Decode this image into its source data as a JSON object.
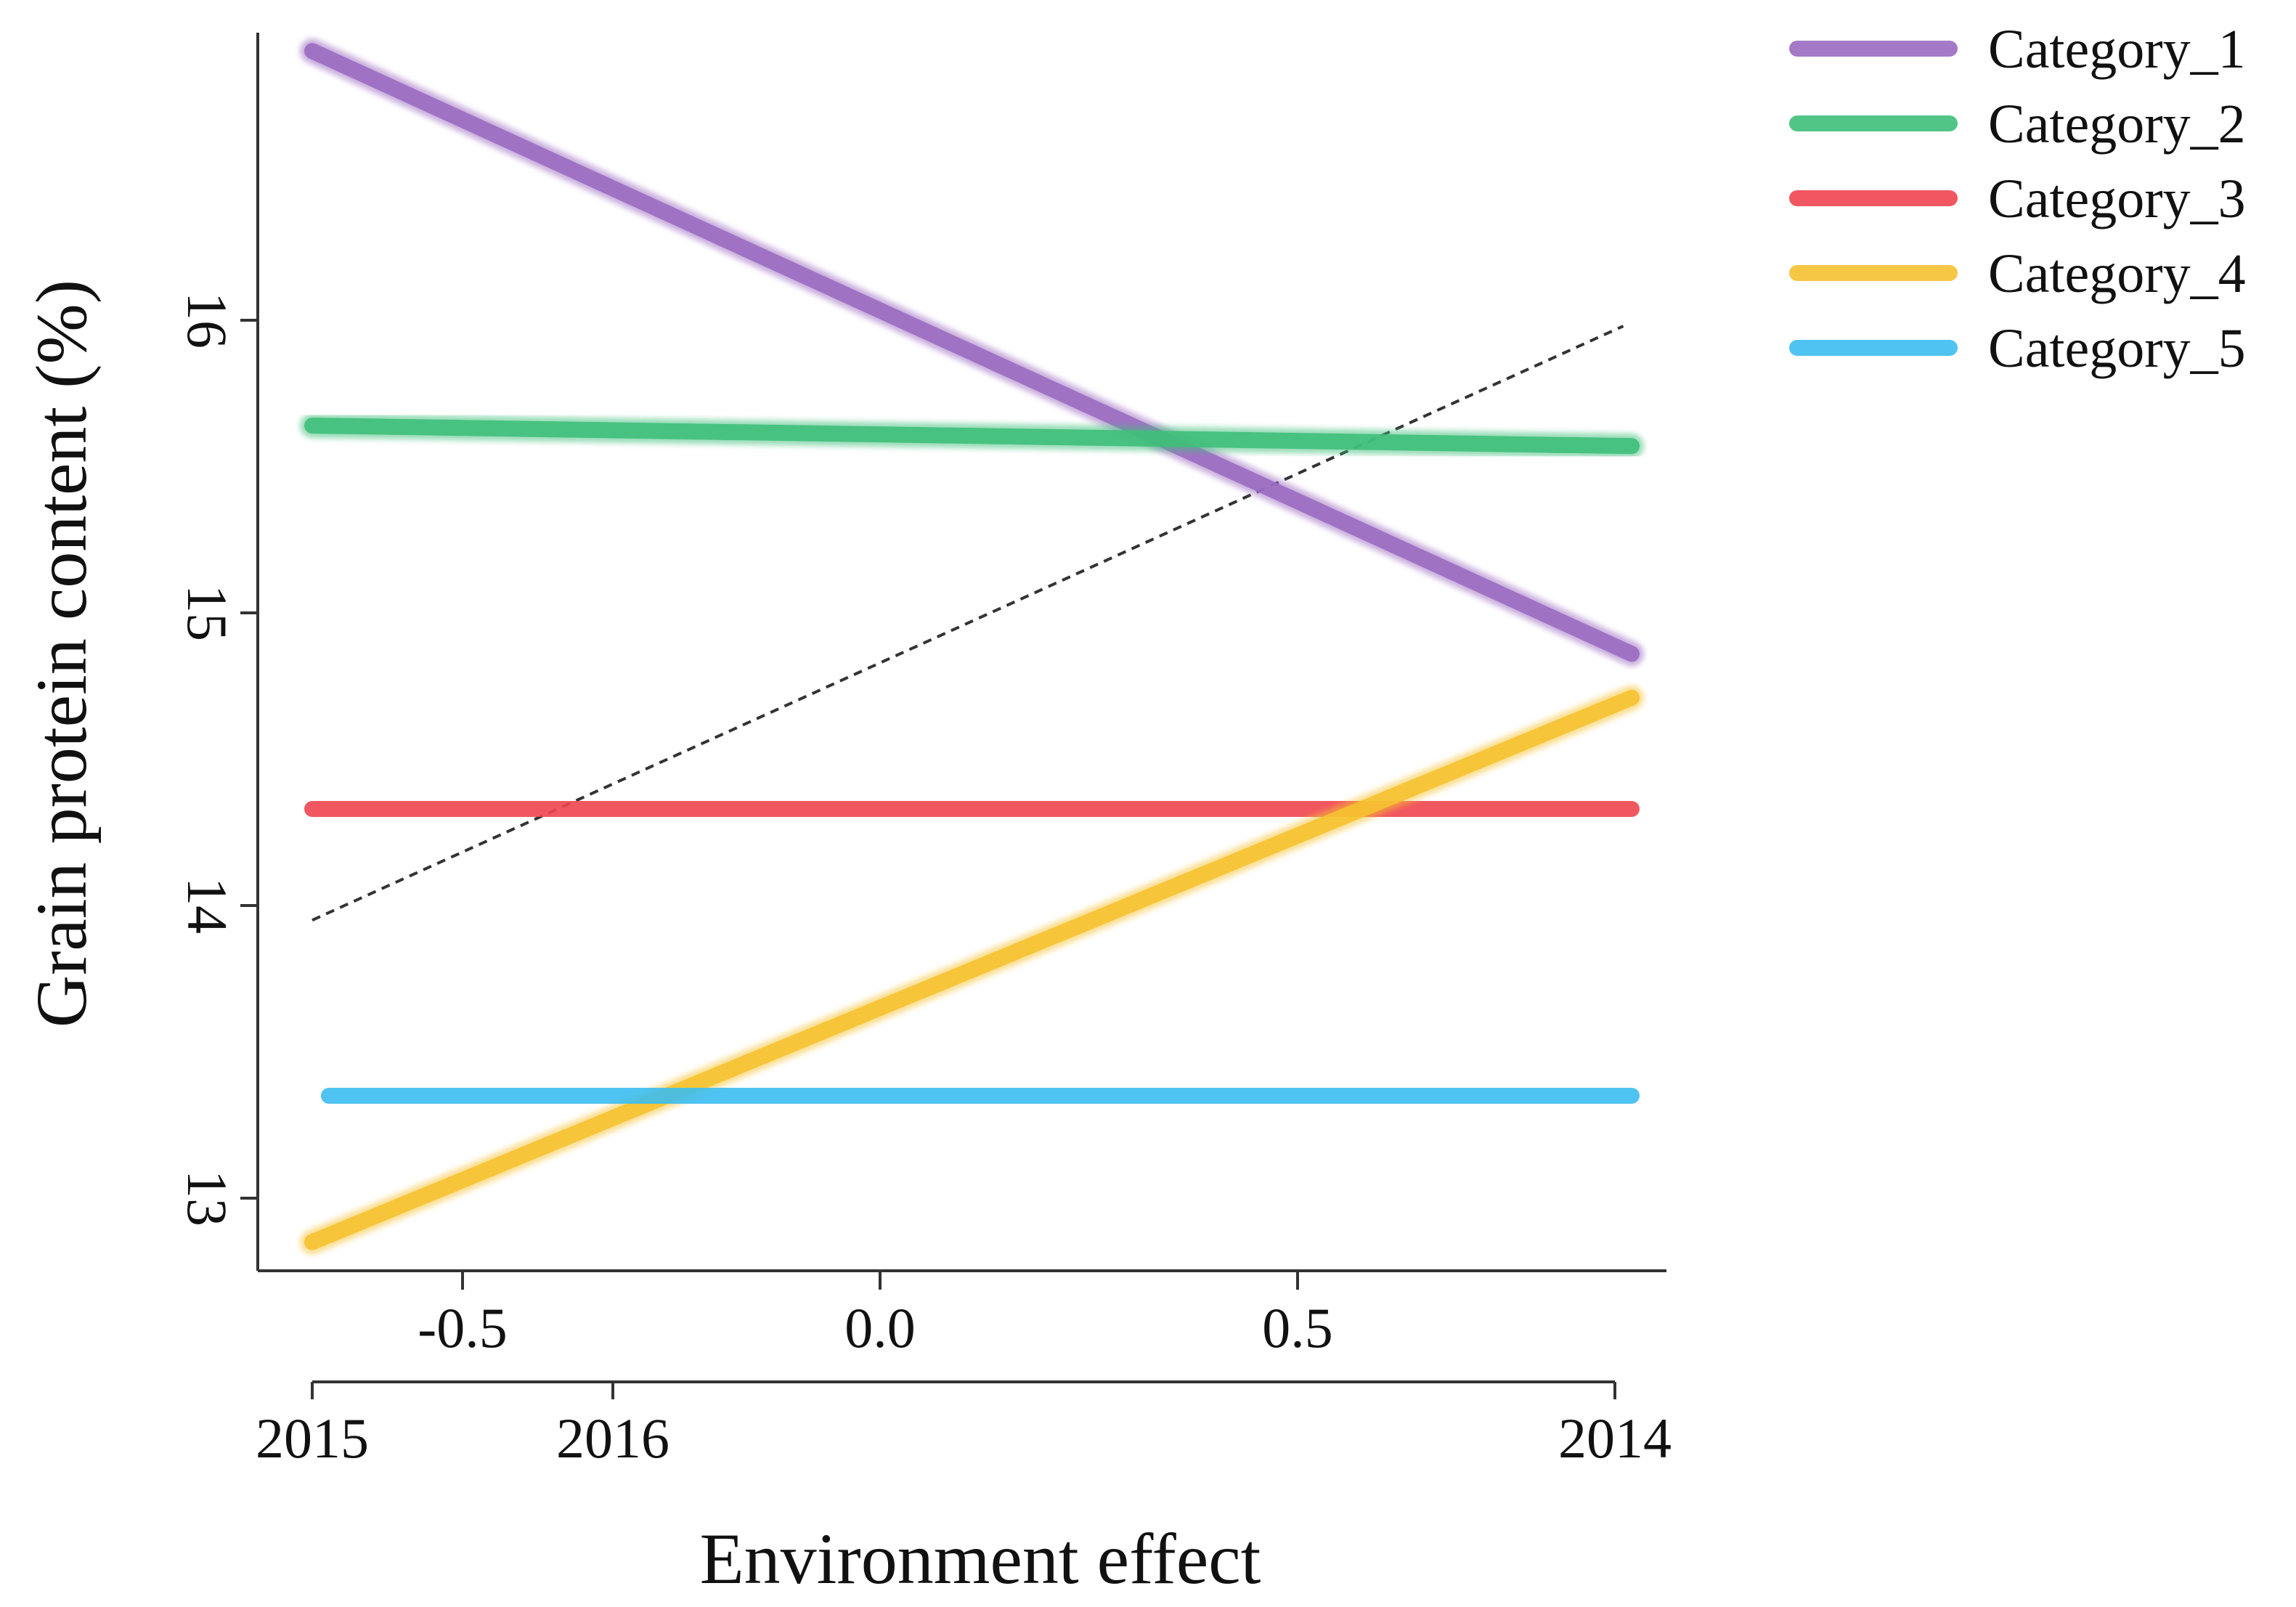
{
  "chart_data": {
    "type": "line",
    "xlabel": "Environment effect",
    "ylabel": "Grain protein content (%)",
    "xlim": [
      -0.67,
      0.94
    ],
    "ylim": [
      12.75,
      17.0
    ],
    "x_ticks": [
      "-0.5",
      "0.0",
      "0.5"
    ],
    "x_tick_values": [
      -0.5,
      0.0,
      0.5
    ],
    "y_ticks": [
      "13",
      "14",
      "15",
      "16"
    ],
    "y_tick_values": [
      13,
      14,
      15,
      16
    ],
    "secondary_x_axis": {
      "labels": [
        "2015",
        "2016",
        "2014"
      ],
      "x": [
        -0.68,
        -0.32,
        0.88
      ]
    },
    "reference_line": {
      "style": "dashed",
      "color": "#333333",
      "x": [
        -0.68,
        0.89
      ],
      "y": [
        13.95,
        15.98
      ]
    },
    "series": [
      {
        "name": "Category_1",
        "color": "#9b6bc1",
        "x": [
          -0.68,
          0.9
        ],
        "y": [
          16.92,
          14.86
        ]
      },
      {
        "name": "Category_2",
        "color": "#3fbf7a",
        "x": [
          -0.68,
          0.9
        ],
        "y": [
          15.64,
          15.57
        ]
      },
      {
        "name": "Category_3",
        "color": "#f0454f",
        "x": [
          -0.68,
          0.9
        ],
        "y": [
          14.33,
          14.33
        ]
      },
      {
        "name": "Category_4",
        "color": "#f6c230",
        "x": [
          -0.68,
          0.9
        ],
        "y": [
          12.85,
          14.71
        ]
      },
      {
        "name": "Category_5",
        "color": "#3cbdf0",
        "x": [
          -0.66,
          0.9
        ],
        "y": [
          13.35,
          13.35
        ]
      }
    ],
    "legend_position": "top-right",
    "grid": false
  }
}
